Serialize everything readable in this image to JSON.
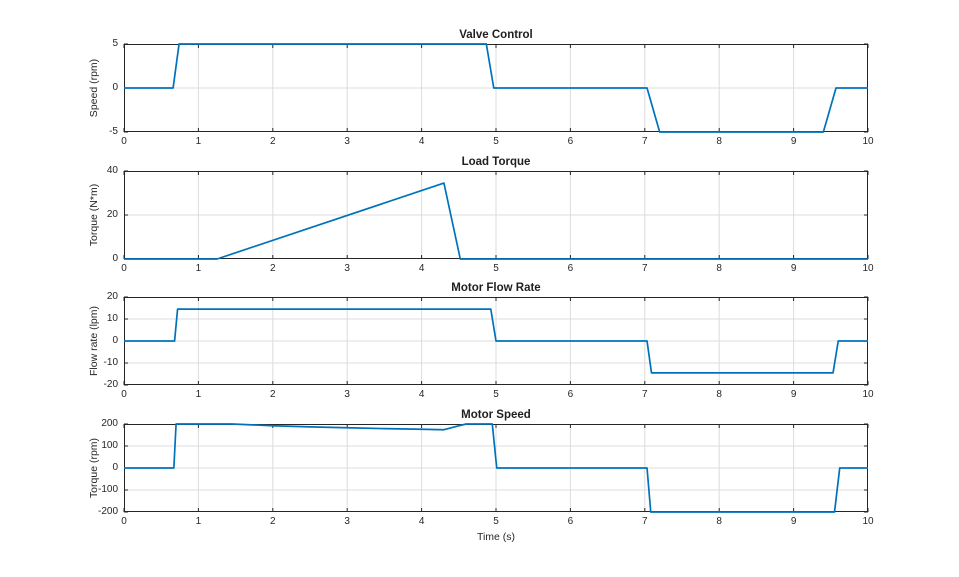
{
  "figure": {
    "xlabel": "Time (s)",
    "line_color": "#0072BD",
    "axis_color": "#262626",
    "grid_color": "#dcdcdc",
    "background_color": "#ffffff"
  },
  "chart_data": [
    {
      "type": "line",
      "title": "Valve Control",
      "xlabel": "",
      "ylabel": "Speed (rpm)",
      "xlim": [
        0,
        10
      ],
      "ylim": [
        -5,
        5
      ],
      "x_ticks": [
        0,
        1,
        2,
        3,
        4,
        5,
        6,
        7,
        8,
        9,
        10
      ],
      "y_ticks": [
        -5,
        0,
        5
      ],
      "grid": true,
      "legend": "none",
      "series": [
        {
          "x": [
            0,
            0.66,
            0.74,
            4.87,
            4.97,
            7.03,
            7.2,
            9.4,
            9.57,
            10
          ],
          "y": [
            0,
            0,
            5,
            5,
            0,
            0,
            -5,
            -5,
            0,
            0
          ]
        }
      ]
    },
    {
      "type": "line",
      "title": "Load Torque",
      "xlabel": "",
      "ylabel": "Torque (N*m)",
      "xlim": [
        0,
        10
      ],
      "ylim": [
        0,
        40
      ],
      "x_ticks": [
        0,
        1,
        2,
        3,
        4,
        5,
        6,
        7,
        8,
        9,
        10
      ],
      "y_ticks": [
        0,
        20,
        40
      ],
      "grid": true,
      "legend": "none",
      "series": [
        {
          "x": [
            0,
            1.25,
            4.3,
            4.52,
            10
          ],
          "y": [
            0,
            0,
            34.5,
            0,
            0
          ]
        }
      ]
    },
    {
      "type": "line",
      "title": "Motor Flow Rate",
      "xlabel": "",
      "ylabel": "Flow rate (lpm)",
      "xlim": [
        0,
        10
      ],
      "ylim": [
        -20,
        20
      ],
      "x_ticks": [
        0,
        1,
        2,
        3,
        4,
        5,
        6,
        7,
        8,
        9,
        10
      ],
      "y_ticks": [
        -20,
        -10,
        0,
        10,
        20
      ],
      "grid": true,
      "legend": "none",
      "series": [
        {
          "x": [
            0,
            0.68,
            0.72,
            4.93,
            5.0,
            7.03,
            7.09,
            9.53,
            9.6,
            10
          ],
          "y": [
            0,
            0,
            14.5,
            14.5,
            0,
            0,
            -14.5,
            -14.5,
            0,
            0
          ]
        }
      ]
    },
    {
      "type": "line",
      "title": "Motor Speed",
      "xlabel": "Time (s)",
      "ylabel": "Torque (rpm)",
      "xlim": [
        0,
        10
      ],
      "ylim": [
        -200,
        200
      ],
      "x_ticks": [
        0,
        1,
        2,
        3,
        4,
        5,
        6,
        7,
        8,
        9,
        10
      ],
      "y_ticks": [
        -200,
        -100,
        0,
        100,
        200
      ],
      "grid": true,
      "legend": "none",
      "series": [
        {
          "x": [
            0,
            0.67,
            0.7,
            1.45,
            2.0,
            2.5,
            3.0,
            3.5,
            4.0,
            4.3,
            4.5,
            4.6,
            4.95,
            5.01,
            7.03,
            7.08,
            9.55,
            9.62,
            10
          ],
          "y": [
            0,
            0,
            200,
            200,
            192,
            187,
            183,
            179,
            176,
            174,
            192,
            200,
            200,
            0,
            0,
            -200,
            -200,
            0,
            0
          ]
        }
      ]
    }
  ]
}
